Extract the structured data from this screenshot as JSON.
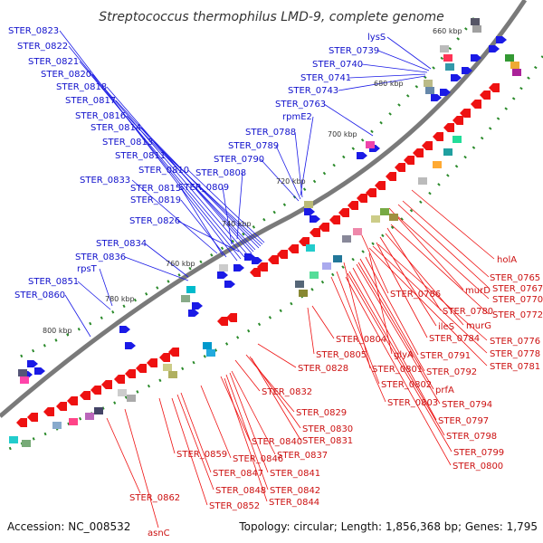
{
  "title": "Streptococcus thermophilus LMD-9, complete genome",
  "footer": {
    "accession": "Accession: NC_008532",
    "summary": "Topology: circular; Length: 1,856,368 bp; Genes: 1,795"
  },
  "colors": {
    "forward_genes": "#1a1ae6",
    "reverse_genes": "#ee1111",
    "backbone": "#7a7a7a",
    "gc_ticks": "#2a8a2a",
    "forward_label": "#1111cc",
    "reverse_label": "#cc1111"
  },
  "ticks": [
    "660 kbp",
    "680 kbp",
    "700 kbp",
    "720 kbp",
    "740 kbp",
    "760 kbp",
    "780 kbp",
    "800 kbp"
  ],
  "forward_labels": [
    "STER_0823",
    "STER_0822",
    "STER_0821",
    "STER_0820",
    "STER_0818",
    "STER_0817",
    "STER_0816",
    "STER_0814",
    "STER_0813",
    "STER_0811",
    "STER_0810",
    "STER_0833",
    "STER_0815",
    "STER_0819",
    "STER_0809",
    "STER_0808",
    "STER_0790",
    "STER_0789",
    "STER_0788",
    "rpmE2",
    "STER_0763",
    "STER_0743",
    "STER_0741",
    "STER_0740",
    "STER_0739",
    "lysS",
    "STER_0826",
    "STER_0834",
    "STER_0836",
    "rpsT",
    "STER_0851",
    "STER_0860"
  ],
  "reverse_labels": [
    "holA",
    "STER_0765",
    "murD",
    "STER_0767",
    "STER_0770",
    "STER_0786",
    "STER_0780",
    "STER_0772",
    "murG",
    "ileS",
    "STER_0776",
    "STER_0784",
    "STER_0778",
    "STER_0781",
    "STER_0804",
    "STER_0805",
    "glyA",
    "STER_0791",
    "STER_0828",
    "STER_0801",
    "STER_0792",
    "STER_0802",
    "prfA",
    "STER_0803",
    "STER_0794",
    "STER_0832",
    "STER_0829",
    "STER_0797",
    "STER_0830",
    "STER_0798",
    "STER_0840",
    "STER_0831",
    "STER_0837",
    "STER_0799",
    "STER_0800",
    "STER_0859",
    "STER_0846",
    "STER_0847",
    "STER_0841",
    "STER_0848",
    "STER_0842",
    "STER_0862",
    "STER_0852",
    "STER_0844",
    "asnC"
  ]
}
